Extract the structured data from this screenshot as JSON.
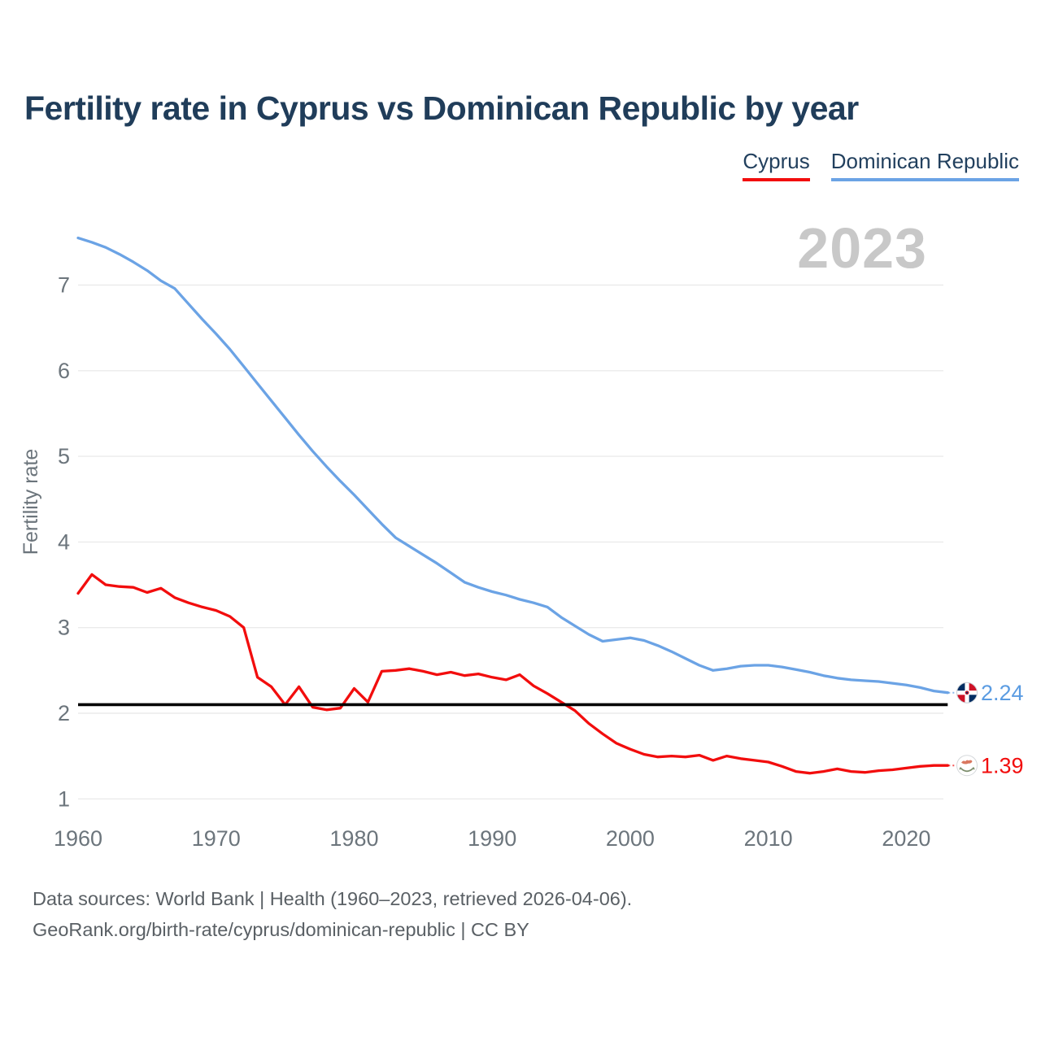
{
  "header": {
    "title": "Fertility rate in Cyprus vs Dominican Republic by year"
  },
  "legend": {
    "items": [
      {
        "label": "Cyprus",
        "color": "#f20d0d"
      },
      {
        "label": "Dominican Republic",
        "color": "#6ba3e5"
      }
    ]
  },
  "watermark": "2023",
  "chart_data": {
    "type": "line",
    "title": "Fertility rate in Cyprus vs Dominican Republic by year",
    "xlabel": "",
    "ylabel": "Fertility rate",
    "xlim": [
      1960,
      2023
    ],
    "ylim": [
      1,
      7.6
    ],
    "grid": "horizontal-only",
    "legend_position": "top-right",
    "x_ticks": [
      1960,
      1970,
      1980,
      1990,
      2000,
      2010,
      2020
    ],
    "y_ticks": [
      1,
      2,
      3,
      4,
      5,
      6,
      7
    ],
    "years": {
      "from": 1960,
      "to": 2023,
      "step": 1
    },
    "series": [
      {
        "id": "dominican-republic",
        "name": "Dominican Republic",
        "color": "#6ba3e5",
        "values": [
          7.55,
          7.5,
          7.44,
          7.36,
          7.27,
          7.17,
          7.05,
          6.96,
          6.78,
          6.6,
          6.43,
          6.25,
          6.05,
          5.85,
          5.65,
          5.45,
          5.25,
          5.06,
          4.88,
          4.71,
          4.55,
          4.38,
          4.21,
          4.05,
          3.95,
          3.85,
          3.75,
          3.64,
          3.53,
          3.47,
          3.42,
          3.38,
          3.33,
          3.29,
          3.24,
          3.12,
          3.02,
          2.92,
          2.84,
          2.86,
          2.88,
          2.85,
          2.79,
          2.72,
          2.64,
          2.56,
          2.5,
          2.52,
          2.55,
          2.56,
          2.56,
          2.54,
          2.51,
          2.48,
          2.44,
          2.41,
          2.39,
          2.38,
          2.37,
          2.35,
          2.33,
          2.3,
          2.26,
          2.24
        ]
      },
      {
        "id": "cyprus",
        "name": "Cyprus",
        "color": "#f20d0d",
        "values": [
          3.4,
          3.62,
          3.5,
          3.48,
          3.47,
          3.41,
          3.46,
          3.35,
          3.29,
          3.24,
          3.2,
          3.13,
          3.0,
          2.42,
          2.31,
          2.1,
          2.31,
          2.07,
          2.04,
          2.06,
          2.29,
          2.13,
          2.49,
          2.5,
          2.52,
          2.49,
          2.45,
          2.48,
          2.44,
          2.46,
          2.42,
          2.39,
          2.45,
          2.32,
          2.23,
          2.13,
          2.03,
          1.88,
          1.76,
          1.65,
          1.58,
          1.52,
          1.49,
          1.5,
          1.49,
          1.51,
          1.45,
          1.5,
          1.47,
          1.45,
          1.43,
          1.38,
          1.32,
          1.3,
          1.32,
          1.35,
          1.32,
          1.31,
          1.33,
          1.34,
          1.36,
          1.38,
          1.39,
          1.39
        ]
      }
    ],
    "reference_line": {
      "value": 2.1,
      "color": "#000000"
    },
    "end_labels": [
      {
        "series": "dominican-republic",
        "label": "2.24",
        "value": 2.24,
        "color": "#5b9ce2",
        "flag": "dominican-republic-flag"
      },
      {
        "series": "cyprus",
        "label": "1.39",
        "value": 1.39,
        "color": "#f20d0d",
        "flag": "cyprus-flag"
      }
    ],
    "colors": {
      "grid": "#ebebeb",
      "tick_text": "#6c757c",
      "dr_flag_blue": "#002d62",
      "dr_flag_red": "#ce1126",
      "cyprus_copper": "#d9775f",
      "cyprus_olive": "#7e8f6e"
    }
  },
  "footer": {
    "line1": "Data sources: World Bank | Health (1960–2023, retrieved 2026-04-06).",
    "line2": "GeoRank.org/birth-rate/cyprus/dominican-republic | CC BY"
  }
}
